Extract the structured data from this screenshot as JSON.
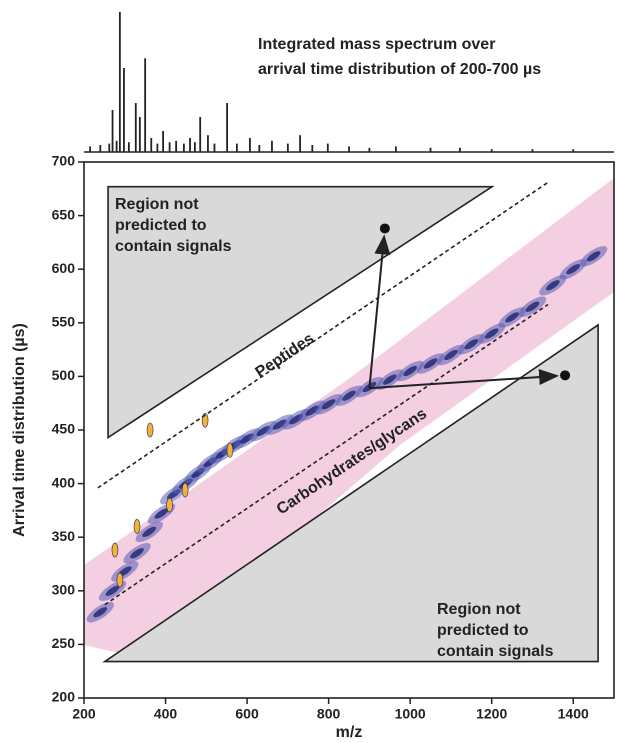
{
  "chart_data": {
    "type": "mobility-map",
    "title": [
      "Integrated mass spectrum over",
      "arrival time distribution of 200-700 µs"
    ],
    "xlabel": "m/z",
    "ylabel": "Arrival time distribution (µs)",
    "xlim": [
      200,
      1500
    ],
    "xticks": [
      200,
      400,
      600,
      800,
      1000,
      1200,
      1400
    ],
    "ylim": [
      200,
      700
    ],
    "yticks": [
      200,
      250,
      300,
      350,
      400,
      450,
      500,
      550,
      600,
      650,
      700
    ],
    "spectrum": {
      "x": [
        215,
        240,
        262,
        270,
        280,
        288,
        298,
        310,
        327,
        337,
        350,
        365,
        380,
        394,
        410,
        426,
        445,
        460,
        472,
        485,
        504,
        520,
        551,
        575,
        607,
        630,
        661,
        700,
        730,
        760,
        798,
        850,
        900,
        965,
        1050,
        1122,
        1200,
        1300,
        1400
      ],
      "values": [
        4,
        5,
        6,
        30,
        8,
        100,
        60,
        7,
        35,
        25,
        67,
        10,
        6,
        15,
        7,
        8,
        6,
        10,
        7,
        25,
        12,
        6,
        35,
        6,
        10,
        5,
        8,
        6,
        12,
        5,
        6,
        4,
        3,
        4,
        3,
        3,
        2,
        2,
        2
      ]
    },
    "density": {
      "x": [
        240,
        270,
        300,
        330,
        360,
        390,
        420,
        450,
        480,
        510,
        540,
        570,
        600,
        640,
        680,
        720,
        760,
        800,
        850,
        900,
        950,
        1000,
        1050,
        1100,
        1150,
        1200,
        1250,
        1300,
        1350,
        1400,
        1450
      ],
      "y": [
        280,
        300,
        318,
        335,
        355,
        372,
        390,
        400,
        410,
        420,
        428,
        436,
        442,
        449,
        455,
        460,
        468,
        474,
        482,
        490,
        497,
        505,
        512,
        520,
        530,
        540,
        555,
        565,
        585,
        600,
        612
      ]
    },
    "intense": {
      "x": [
        276,
        288,
        362,
        448,
        497,
        558,
        330,
        410
      ],
      "y": [
        338,
        310,
        450,
        394,
        459,
        431,
        360,
        380
      ]
    },
    "regions": [
      {
        "label": [
          "Region not",
          "predicted to",
          "contain signals"
        ],
        "x": [
          259,
          1201,
          259
        ],
        "y": [
          677,
          677,
          443
        ]
      },
      {
        "label": [
          "Region not",
          "predicted to",
          "contain signals"
        ],
        "x": [
          251,
          1461,
          1461
        ],
        "y": [
          234,
          548,
          234
        ]
      }
    ],
    "bands": [
      {
        "label": "Peptides",
        "x": [
          234,
          1338
        ],
        "y": [
          396,
          681
        ]
      },
      {
        "label": "Carbohydrates/glycans",
        "x": [
          251,
          1338
        ],
        "y": [
          287,
          567
        ]
      }
    ],
    "arrows": {
      "origin": {
        "x": 900,
        "y": 489
      },
      "targets": [
        {
          "x": 938,
          "y": 638
        },
        {
          "x": 1380,
          "y": 501
        }
      ]
    }
  }
}
